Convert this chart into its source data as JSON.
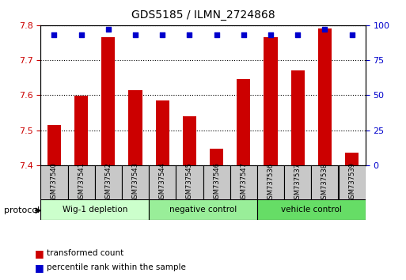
{
  "title": "GDS5185 / ILMN_2724868",
  "samples": [
    "GSM737540",
    "GSM737541",
    "GSM737542",
    "GSM737543",
    "GSM737544",
    "GSM737545",
    "GSM737546",
    "GSM737547",
    "GSM737536",
    "GSM737537",
    "GSM737538",
    "GSM737539"
  ],
  "bar_values": [
    7.515,
    7.598,
    7.765,
    7.615,
    7.585,
    7.54,
    7.447,
    7.645,
    7.765,
    7.67,
    7.79,
    7.435
  ],
  "blue_dot_values": [
    93,
    93,
    97,
    93,
    93,
    93,
    93,
    93,
    93,
    93,
    97,
    93
  ],
  "ylim_left": [
    7.4,
    7.8
  ],
  "ylim_right": [
    0,
    100
  ],
  "yticks_left": [
    7.4,
    7.5,
    7.6,
    7.7,
    7.8
  ],
  "yticks_right": [
    0,
    25,
    50,
    75,
    100
  ],
  "bar_color": "#cc0000",
  "dot_color": "#0000cc",
  "bar_width": 0.5,
  "groups": [
    {
      "label": "Wig-1 depletion",
      "start": 0,
      "end": 4,
      "color": "#ccffcc"
    },
    {
      "label": "negative control",
      "start": 4,
      "end": 8,
      "color": "#99ee99"
    },
    {
      "label": "vehicle control",
      "start": 8,
      "end": 12,
      "color": "#66dd66"
    }
  ],
  "protocol_label": "protocol",
  "legend_items": [
    {
      "label": "transformed count",
      "color": "#cc0000"
    },
    {
      "label": "percentile rank within the sample",
      "color": "#0000cc"
    }
  ],
  "plot_bg_color": "#ffffff",
  "tick_label_color_left": "#cc0000",
  "tick_label_color_right": "#0000cc",
  "sample_box_color": "#c8c8c8"
}
